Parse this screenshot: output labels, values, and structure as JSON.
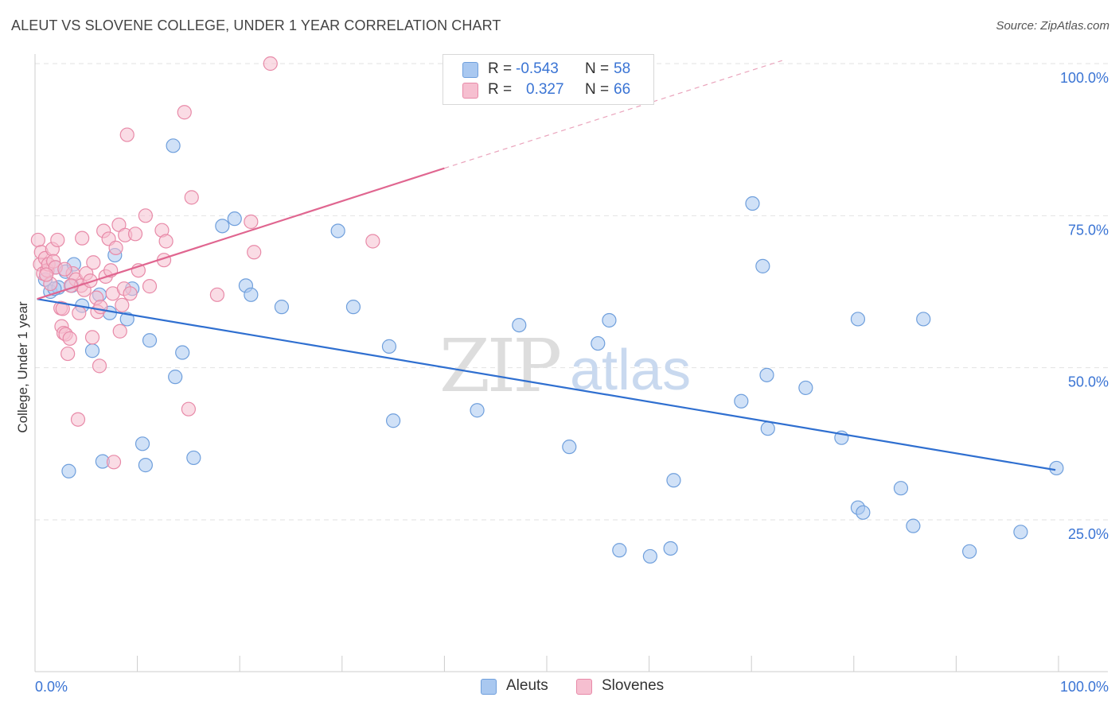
{
  "title": "ALEUT VS SLOVENE COLLEGE, UNDER 1 YEAR CORRELATION CHART",
  "source": "Source: ZipAtlas.com",
  "colors": {
    "aleut_fill": "#a9c8f0",
    "aleut_stroke": "#6f9fdc",
    "aleut_line": "#2f6fd0",
    "slovene_fill": "#f6bfd0",
    "slovene_stroke": "#e88aa8",
    "slovene_line": "#e06690",
    "value_text": "#3a74d4",
    "grid": "#e2e2e2"
  },
  "legend": {
    "rows": [
      {
        "r_label": "R =",
        "r_value": "-0.543",
        "n_label": "N =",
        "n_value": "58"
      },
      {
        "r_label": "R =",
        "r_value": "0.327",
        "n_label": "N =",
        "n_value": "66"
      }
    ]
  },
  "bottom_legend": {
    "aleuts": "Aleuts",
    "slovenes": "Slovenes"
  },
  "watermark": {
    "zip": "ZIP",
    "atlas": "atlas"
  },
  "chart_data": {
    "type": "scatter",
    "title": "ALEUT VS SLOVENE COLLEGE, UNDER 1 YEAR CORRELATION CHART",
    "xlabel": "",
    "ylabel": "College, Under 1 year",
    "xlim": [
      0,
      100
    ],
    "ylim": [
      0,
      102
    ],
    "x_tick_labels": [
      "0.0%",
      "100.0%"
    ],
    "y_ticks": [
      25,
      50,
      75,
      100
    ],
    "y_tick_labels": [
      "25.0%",
      "50.0%",
      "75.0%",
      "100.0%"
    ],
    "grid": true,
    "series": [
      {
        "name": "Aleuts",
        "r": -0.543,
        "n": 58,
        "trend": {
          "x0": 0.2,
          "y0": 61.3,
          "x1": 99.7,
          "y1": 33.2
        },
        "points": [
          [
            1.0,
            64.5
          ],
          [
            1.5,
            62.5
          ],
          [
            2.0,
            66.5
          ],
          [
            2.3,
            63.2
          ],
          [
            3.0,
            65.8
          ],
          [
            3.6,
            63.5
          ],
          [
            3.8,
            67.0
          ],
          [
            4.6,
            60.2
          ],
          [
            5.6,
            52.8
          ],
          [
            6.3,
            62.0
          ],
          [
            6.6,
            34.6
          ],
          [
            7.3,
            59.0
          ],
          [
            7.8,
            68.5
          ],
          [
            9.0,
            58.0
          ],
          [
            9.5,
            63.0
          ],
          [
            10.5,
            37.5
          ],
          [
            10.8,
            34.0
          ],
          [
            11.2,
            54.5
          ],
          [
            13.5,
            86.5
          ],
          [
            13.7,
            48.5
          ],
          [
            14.4,
            52.5
          ],
          [
            15.5,
            35.2
          ],
          [
            18.3,
            73.3
          ],
          [
            19.5,
            74.5
          ],
          [
            20.6,
            63.5
          ],
          [
            21.1,
            62.0
          ],
          [
            24.1,
            60.0
          ],
          [
            29.6,
            72.5
          ],
          [
            31.1,
            60.0
          ],
          [
            34.6,
            53.5
          ],
          [
            35.0,
            41.3
          ],
          [
            43.2,
            43.0
          ],
          [
            47.3,
            57.0
          ],
          [
            52.2,
            37.0
          ],
          [
            55.0,
            54.0
          ],
          [
            56.1,
            57.8
          ],
          [
            57.1,
            20.0
          ],
          [
            60.1,
            19.0
          ],
          [
            62.1,
            20.3
          ],
          [
            62.4,
            31.5
          ],
          [
            69.0,
            44.5
          ],
          [
            70.1,
            77.0
          ],
          [
            71.1,
            66.7
          ],
          [
            71.5,
            48.8
          ],
          [
            71.6,
            40.0
          ],
          [
            75.3,
            46.7
          ],
          [
            78.8,
            38.5
          ],
          [
            80.4,
            58.0
          ],
          [
            80.4,
            27.0
          ],
          [
            80.9,
            26.2
          ],
          [
            84.6,
            30.2
          ],
          [
            85.8,
            24.0
          ],
          [
            86.8,
            58.0
          ],
          [
            91.3,
            19.8
          ],
          [
            96.3,
            23.0
          ],
          [
            99.8,
            33.5
          ],
          [
            3.3,
            33.0
          ],
          [
            1.9,
            63.0
          ]
        ]
      },
      {
        "name": "Slovenes",
        "r": 0.327,
        "n": 66,
        "trend": {
          "x0": 0.2,
          "y0": 61.3,
          "x1": 40.0,
          "y1": 82.8,
          "dash_x1": 73.0,
          "dash_y1": 100.5
        },
        "points": [
          [
            0.3,
            71.0
          ],
          [
            0.5,
            67.0
          ],
          [
            0.6,
            69.0
          ],
          [
            0.8,
            65.5
          ],
          [
            1.0,
            68.0
          ],
          [
            1.2,
            66.0
          ],
          [
            1.3,
            67.0
          ],
          [
            1.5,
            63.8
          ],
          [
            1.7,
            69.5
          ],
          [
            1.8,
            67.5
          ],
          [
            2.0,
            66.5
          ],
          [
            2.2,
            71.0
          ],
          [
            2.5,
            59.8
          ],
          [
            2.6,
            56.8
          ],
          [
            2.7,
            59.7
          ],
          [
            2.8,
            55.7
          ],
          [
            3.0,
            55.5
          ],
          [
            3.2,
            52.3
          ],
          [
            3.4,
            54.8
          ],
          [
            3.7,
            65.5
          ],
          [
            4.0,
            64.5
          ],
          [
            4.2,
            41.5
          ],
          [
            4.3,
            59.0
          ],
          [
            4.5,
            63.5
          ],
          [
            4.6,
            71.3
          ],
          [
            4.8,
            62.8
          ],
          [
            5.0,
            65.5
          ],
          [
            5.4,
            64.3
          ],
          [
            5.6,
            55.0
          ],
          [
            5.7,
            67.3
          ],
          [
            6.0,
            61.5
          ],
          [
            6.1,
            59.2
          ],
          [
            6.3,
            50.3
          ],
          [
            6.4,
            60.0
          ],
          [
            6.7,
            72.5
          ],
          [
            6.9,
            65.0
          ],
          [
            7.2,
            71.2
          ],
          [
            7.4,
            66.0
          ],
          [
            7.6,
            62.2
          ],
          [
            7.7,
            34.5
          ],
          [
            7.9,
            69.7
          ],
          [
            8.2,
            73.5
          ],
          [
            8.3,
            56.0
          ],
          [
            8.5,
            60.3
          ],
          [
            8.7,
            63.0
          ],
          [
            8.8,
            71.8
          ],
          [
            9.0,
            88.3
          ],
          [
            9.3,
            62.2
          ],
          [
            9.8,
            72.0
          ],
          [
            10.1,
            66.0
          ],
          [
            10.8,
            75.0
          ],
          [
            11.2,
            63.4
          ],
          [
            12.4,
            72.6
          ],
          [
            12.6,
            67.7
          ],
          [
            12.8,
            70.8
          ],
          [
            14.6,
            92.0
          ],
          [
            15.0,
            43.2
          ],
          [
            15.3,
            78.0
          ],
          [
            17.8,
            62.0
          ],
          [
            21.1,
            74.0
          ],
          [
            21.4,
            69.0
          ],
          [
            23.0,
            100.0
          ],
          [
            33.0,
            70.8
          ],
          [
            2.9,
            66.2
          ],
          [
            3.5,
            63.5
          ],
          [
            1.1,
            65.3
          ]
        ]
      }
    ]
  }
}
